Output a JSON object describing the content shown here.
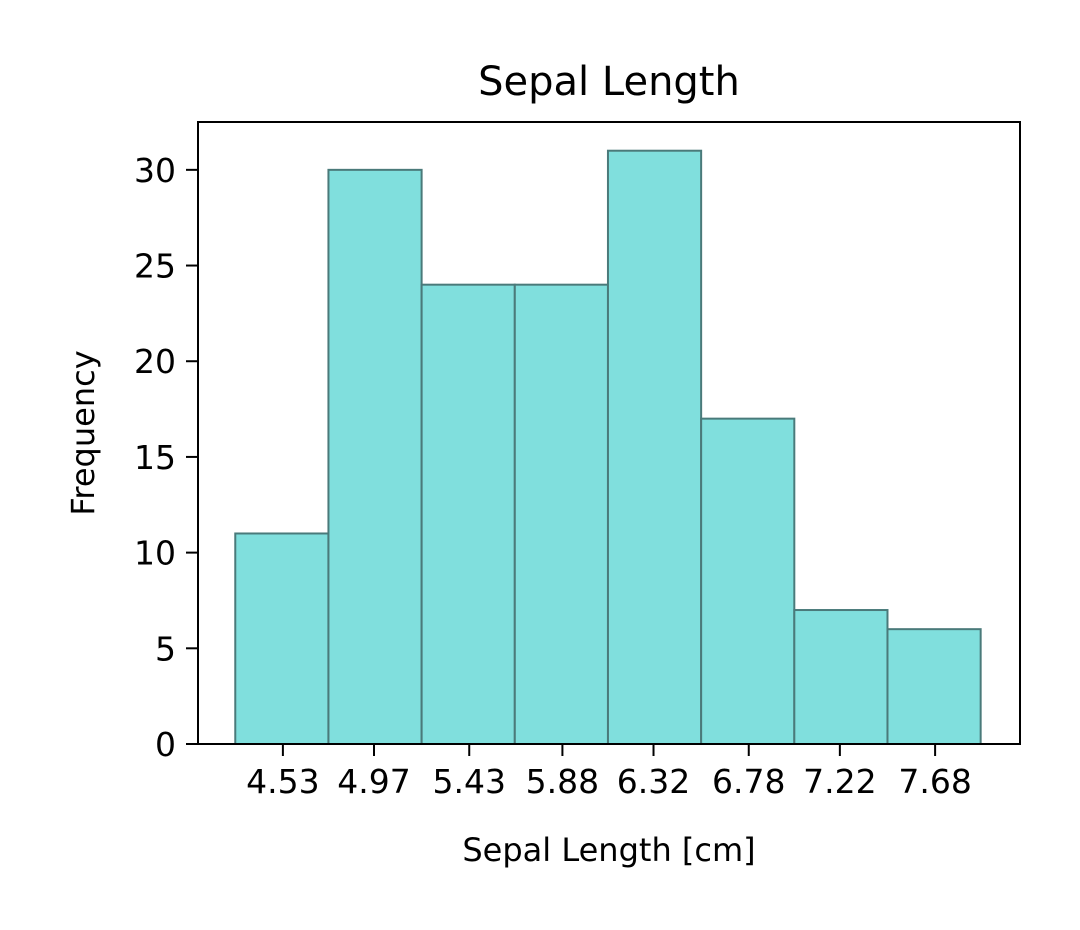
{
  "chart_data": {
    "type": "bar",
    "title": "Sepal Length",
    "xlabel": "Sepal Length [cm]",
    "ylabel": "Frequency",
    "bin_edges": [
      4.3,
      4.75,
      5.2,
      5.65,
      6.1,
      6.55,
      7.0,
      7.45,
      7.9
    ],
    "values": [
      11,
      30,
      24,
      24,
      31,
      17,
      7,
      6
    ],
    "xticks": [
      4.53,
      4.97,
      5.43,
      5.88,
      6.32,
      6.78,
      7.22,
      7.68
    ],
    "xtick_labels": [
      "4.53",
      "4.97",
      "5.43",
      "5.88",
      "6.32",
      "6.78",
      "7.22",
      "7.68"
    ],
    "yticks": [
      0,
      5,
      10,
      15,
      20,
      25,
      30
    ],
    "xlim": [
      4.12,
      8.09
    ],
    "ylim": [
      0,
      32.5
    ],
    "grid": false,
    "bar_color": "#80dfdd",
    "edge_color": "#4a7a7a"
  }
}
